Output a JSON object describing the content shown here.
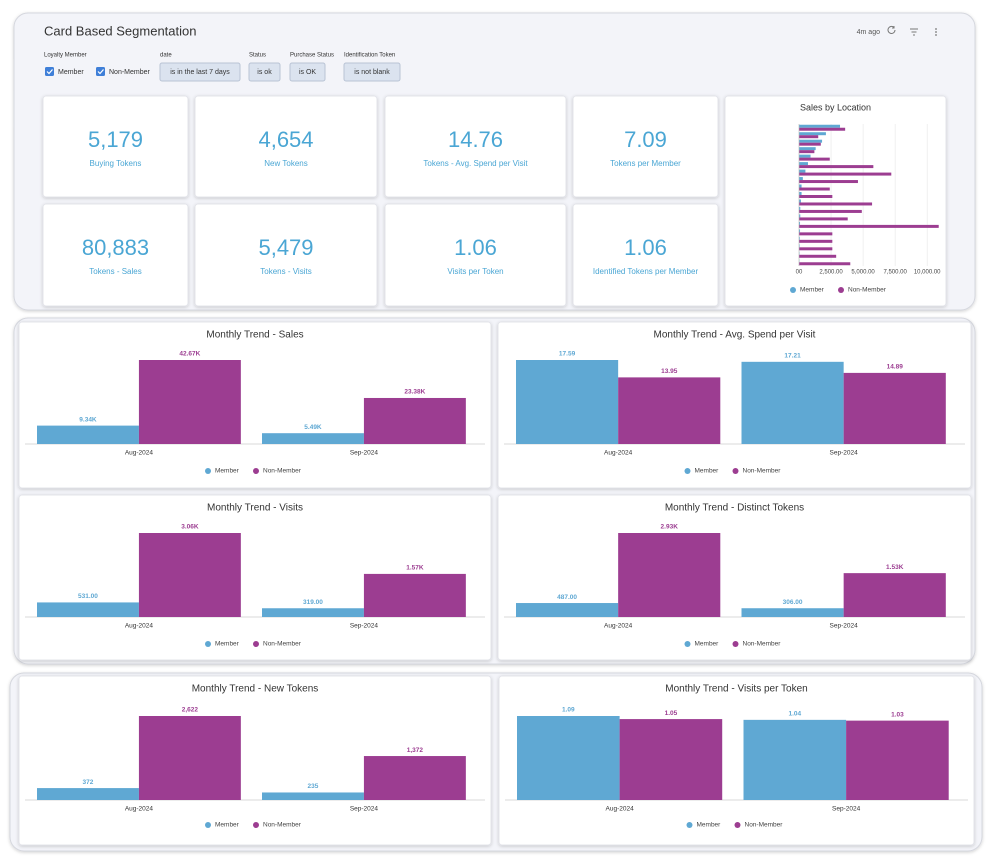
{
  "header": {
    "title": "Card Based Segmentation",
    "updated": "4m ago"
  },
  "filters": {
    "loyalty": {
      "label": "Loyalty Member",
      "options": [
        "Member",
        "Non-Member"
      ]
    },
    "chips": [
      {
        "label": "date",
        "value": "is in the last 7 days"
      },
      {
        "label": "Status",
        "value": "is ok"
      },
      {
        "label": "Purchase Status",
        "value": "is OK"
      },
      {
        "label": "Identification Token",
        "value": "is not blank"
      }
    ]
  },
  "kpis": [
    {
      "value": "5,179",
      "label": "Buying Tokens"
    },
    {
      "value": "4,654",
      "label": "New Tokens"
    },
    {
      "value": "14.76",
      "label": "Tokens - Avg. Spend per Visit"
    },
    {
      "value": "7.09",
      "label": "Tokens per Member"
    },
    {
      "value": "80,883",
      "label": "Tokens - Sales"
    },
    {
      "value": "5,479",
      "label": "Tokens - Visits"
    },
    {
      "value": "1.06",
      "label": "Visits per Token"
    },
    {
      "value": "1.06",
      "label": "Identified Tokens per Member"
    }
  ],
  "chart_data": [
    {
      "type": "hbar",
      "title": "Sales by Location",
      "categories": [
        null,
        null,
        null,
        null,
        null,
        null,
        null,
        null,
        null,
        null,
        null,
        null,
        null,
        null,
        null,
        null,
        null,
        null,
        null
      ],
      "series": [
        {
          "name": "Member",
          "color": "#5fa8d3",
          "values": [
            3200,
            2100,
            1800,
            1300,
            900,
            700,
            500,
            300,
            200,
            200,
            150,
            100,
            100,
            80,
            80,
            60,
            50,
            40,
            30
          ]
        },
        {
          "name": "Non-Member",
          "color": "#9c3d91",
          "values": [
            3600,
            1500,
            1700,
            1200,
            2400,
            5800,
            7200,
            4600,
            2400,
            2600,
            5700,
            4900,
            3800,
            10900,
            2600,
            2600,
            2600,
            2900,
            4000
          ]
        }
      ],
      "xlim": [
        0,
        11000
      ],
      "xticks": [
        {
          "value": 0,
          "label": "00"
        },
        {
          "value": 2500,
          "label": "2,500.00"
        },
        {
          "value": 5000,
          "label": "5,000.00"
        },
        {
          "value": 7500,
          "label": "7,500.00"
        },
        {
          "value": 10000,
          "label": "10,000.00"
        }
      ],
      "grid": true
    },
    {
      "type": "bar",
      "title": "Monthly Trend - Sales",
      "categories": [
        "Aug-2024",
        "Sep-2024"
      ],
      "series": [
        {
          "name": "Member",
          "color": "#5fa8d3",
          "values": [
            9340,
            5490
          ],
          "value_labels": [
            "9.34K",
            "5.49K"
          ]
        },
        {
          "name": "Non-Member",
          "color": "#9c3d91",
          "values": [
            42670,
            23380
          ],
          "value_labels": [
            "42.67K",
            "23.38K"
          ]
        }
      ]
    },
    {
      "type": "bar",
      "title": "Monthly Trend - Avg. Spend per Visit",
      "categories": [
        "Aug-2024",
        "Sep-2024"
      ],
      "series": [
        {
          "name": "Member",
          "color": "#5fa8d3",
          "values": [
            17.59,
            17.21
          ]
        },
        {
          "name": "Non-Member",
          "color": "#9c3d91",
          "values": [
            13.95,
            14.89
          ]
        }
      ]
    },
    {
      "type": "bar",
      "title": "Monthly Trend - Visits",
      "categories": [
        "Aug-2024",
        "Sep-2024"
      ],
      "series": [
        {
          "name": "Member",
          "color": "#5fa8d3",
          "values": [
            531,
            319
          ],
          "value_labels": [
            "531.00",
            "319.00"
          ]
        },
        {
          "name": "Non-Member",
          "color": "#9c3d91",
          "values": [
            3060,
            1570
          ],
          "value_labels": [
            "3.06K",
            "1.57K"
          ]
        }
      ]
    },
    {
      "type": "bar",
      "title": "Monthly Trend - Distinct Tokens",
      "categories": [
        "Aug-2024",
        "Sep-2024"
      ],
      "series": [
        {
          "name": "Member",
          "color": "#5fa8d3",
          "values": [
            487,
            306
          ],
          "value_labels": [
            "487.00",
            "306.00"
          ]
        },
        {
          "name": "Non-Member",
          "color": "#9c3d91",
          "values": [
            2930,
            1530
          ],
          "value_labels": [
            "2.93K",
            "1.53K"
          ]
        }
      ]
    },
    {
      "type": "bar",
      "title": "Monthly Trend - New Tokens",
      "categories": [
        "Aug-2024",
        "Sep-2024"
      ],
      "series": [
        {
          "name": "Member",
          "color": "#5fa8d3",
          "values": [
            372,
            235
          ]
        },
        {
          "name": "Non-Member",
          "color": "#9c3d91",
          "values": [
            2622,
            1372
          ],
          "value_labels": [
            "2,622",
            "1,372"
          ]
        }
      ]
    },
    {
      "type": "bar",
      "title": "Monthly Trend - Visits per Token",
      "categories": [
        "Aug-2024",
        "Sep-2024"
      ],
      "series": [
        {
          "name": "Member",
          "color": "#5fa8d3",
          "values": [
            1.09,
            1.04
          ]
        },
        {
          "name": "Non-Member",
          "color": "#9c3d91",
          "values": [
            1.05,
            1.03
          ]
        }
      ]
    }
  ]
}
